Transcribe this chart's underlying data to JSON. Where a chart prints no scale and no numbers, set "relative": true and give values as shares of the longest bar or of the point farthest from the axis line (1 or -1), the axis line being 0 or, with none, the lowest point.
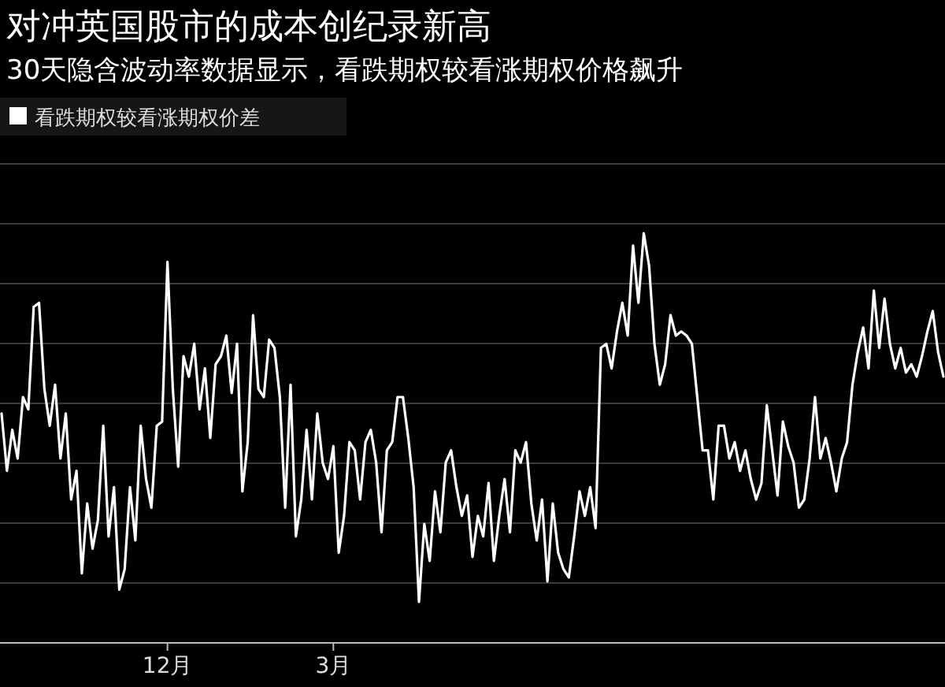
{
  "chart_data": {
    "type": "line",
    "title": "对冲英国股市的成本创纪录新高",
    "subtitle": "30天隐含波动率数据显示，看跌期权较看涨期权价格飙升",
    "relative": true,
    "legend": "top left",
    "grid": "y",
    "line_style": "solid",
    "marker": "none",
    "categories": [
      null,
      null,
      null,
      null,
      null,
      null,
      null,
      null,
      null,
      null,
      null,
      null,
      null,
      null,
      null,
      null,
      null,
      null,
      null,
      null,
      null,
      null,
      null,
      null,
      null,
      null,
      null,
      null,
      null,
      null,
      null,
      "12月",
      null,
      null,
      null,
      null,
      null,
      null,
      null,
      null,
      null,
      null,
      null,
      null,
      null,
      null,
      null,
      null,
      null,
      null,
      null,
      null,
      null,
      null,
      null,
      null,
      null,
      null,
      null,
      null,
      null,
      null,
      "3月",
      null,
      null,
      null,
      null,
      null,
      null,
      null,
      null,
      null,
      null,
      null,
      null,
      null,
      null,
      null,
      null,
      null,
      null,
      null,
      null,
      null,
      null,
      null,
      null,
      null,
      null,
      null,
      null,
      null,
      null,
      null,
      null,
      null,
      null,
      null,
      null,
      null,
      null,
      null,
      null,
      null,
      null,
      null,
      null,
      null,
      null,
      null,
      null,
      null,
      null,
      null,
      null,
      null,
      null,
      null,
      null,
      null,
      null,
      null,
      null,
      null,
      null,
      null,
      null,
      null,
      null,
      null,
      null,
      null,
      null,
      null,
      null,
      null,
      null,
      null,
      null,
      null,
      null,
      null,
      null,
      null,
      null,
      null,
      null,
      null,
      null,
      null,
      null,
      null,
      null,
      null,
      null,
      null,
      null,
      null,
      null,
      null,
      null,
      null,
      null,
      null,
      null,
      null,
      null,
      null,
      null,
      null,
      null,
      null,
      null,
      null,
      null,
      null,
      null
    ],
    "series": [
      {
        "name": "看跌期权较看涨期权价差",
        "color": "#ffffff",
        "values": [
          0.56,
          0.42,
          0.52,
          0.45,
          0.6,
          0.57,
          0.82,
          0.83,
          0.62,
          0.53,
          0.63,
          0.45,
          0.56,
          0.35,
          0.42,
          0.17,
          0.34,
          0.23,
          0.3,
          0.53,
          0.26,
          0.38,
          0.13,
          0.18,
          0.38,
          0.25,
          0.53,
          0.4,
          0.33,
          0.53,
          0.54,
          0.93,
          0.62,
          0.43,
          0.7,
          0.65,
          0.73,
          0.57,
          0.67,
          0.5,
          0.68,
          0.7,
          0.75,
          0.61,
          0.73,
          0.37,
          0.49,
          0.8,
          0.62,
          0.6,
          0.74,
          0.72,
          0.6,
          0.33,
          0.63,
          0.26,
          0.35,
          0.52,
          0.35,
          0.56,
          0.44,
          0.4,
          0.48,
          0.22,
          0.31,
          0.49,
          0.47,
          0.35,
          0.49,
          0.52,
          0.44,
          0.27,
          0.47,
          0.49,
          0.6,
          0.6,
          0.5,
          0.38,
          0.1,
          0.29,
          0.2,
          0.37,
          0.27,
          0.44,
          0.47,
          0.38,
          0.31,
          0.36,
          0.21,
          0.31,
          0.26,
          0.39,
          0.2,
          0.31,
          0.4,
          0.27,
          0.47,
          0.44,
          0.49,
          0.34,
          0.25,
          0.35,
          0.15,
          0.34,
          0.22,
          0.18,
          0.16,
          0.26,
          0.37,
          0.31,
          0.38,
          0.28,
          0.72,
          0.73,
          0.67,
          0.76,
          0.83,
          0.75,
          0.97,
          0.83,
          1.0,
          0.92,
          0.73,
          0.63,
          0.68,
          0.8,
          0.75,
          0.76,
          0.75,
          0.73,
          0.6,
          0.47,
          0.47,
          0.35,
          0.53,
          0.53,
          0.45,
          0.49,
          0.42,
          0.47,
          0.4,
          0.35,
          0.39,
          0.58,
          0.47,
          0.36,
          0.54,
          0.48,
          0.44,
          0.33,
          0.35,
          0.45,
          0.6,
          0.45,
          0.5,
          0.44,
          0.37,
          0.45,
          0.49,
          0.63,
          0.71,
          0.77,
          0.67,
          0.86,
          0.72,
          0.84,
          0.73,
          0.67,
          0.72,
          0.66,
          0.68,
          0.65,
          0.7,
          0.76,
          0.81,
          0.71,
          0.65
        ]
      }
    ]
  }
}
